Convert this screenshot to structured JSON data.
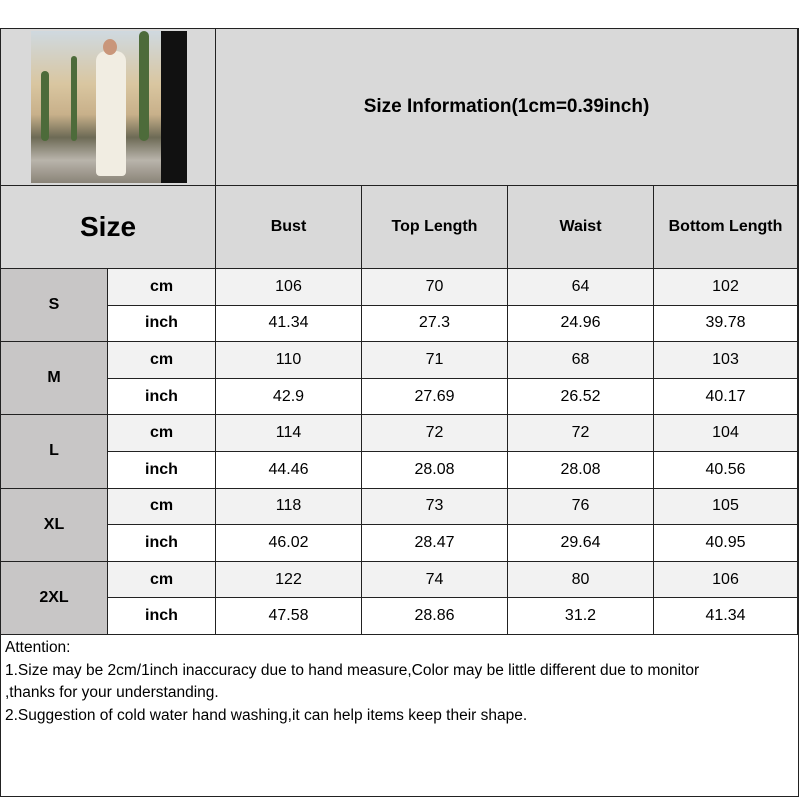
{
  "title": "Size Information(1cm=0.39inch)",
  "size_header": "Size",
  "columns": [
    "Bust",
    "Top Length",
    "Waist",
    "Bottom Length"
  ],
  "units": {
    "cm": "cm",
    "inch": "inch"
  },
  "rows": [
    {
      "size": "S",
      "cm": [
        "106",
        "70",
        "64",
        "102"
      ],
      "inch": [
        "41.34",
        "27.3",
        "24.96",
        "39.78"
      ]
    },
    {
      "size": "M",
      "cm": [
        "110",
        "71",
        "68",
        "103"
      ],
      "inch": [
        "42.9",
        "27.69",
        "26.52",
        "40.17"
      ]
    },
    {
      "size": "L",
      "cm": [
        "114",
        "72",
        "72",
        "104"
      ],
      "inch": [
        "44.46",
        "28.08",
        "28.08",
        "40.56"
      ]
    },
    {
      "size": "XL",
      "cm": [
        "118",
        "73",
        "76",
        "105"
      ],
      "inch": [
        "46.02",
        "28.47",
        "29.64",
        "40.95"
      ]
    },
    {
      "size": "2XL",
      "cm": [
        "122",
        "74",
        "80",
        "106"
      ],
      "inch": [
        "47.58",
        "28.86",
        "31.2",
        "41.34"
      ]
    }
  ],
  "attention": {
    "heading": "Attention:",
    "lines": [
      "1.Size may be 2cm/1inch inaccuracy due to hand measure,Color may be little different due to monitor",
      ",thanks for your understanding.",
      "2.Suggestion of cold water hand washing,it can help items keep their shape."
    ]
  },
  "colors": {
    "header_bg": "#d9d9d9",
    "size_bg": "#c8c6c6",
    "cm_row_bg": "#f2f2f2",
    "inch_row_bg": "#ffffff"
  }
}
